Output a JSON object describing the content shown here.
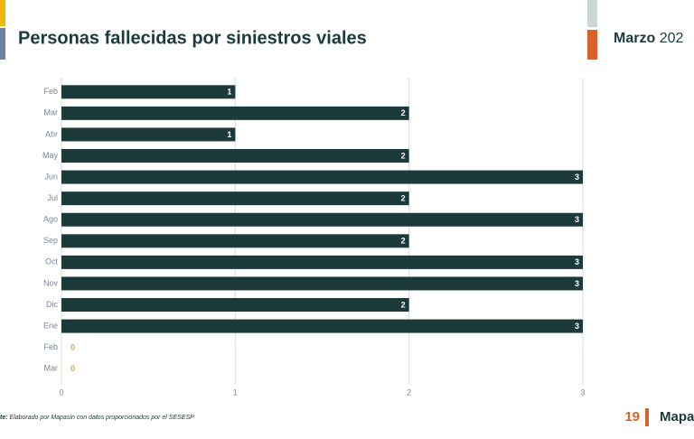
{
  "chart_data": {
    "type": "hbar",
    "title": "Personas fallecidas por siniestros viales",
    "categories": [
      "Feb",
      "Mar",
      "Abr",
      "May",
      "Jun",
      "Jul",
      "Ago",
      "Sep",
      "Oct",
      "Nov",
      "Dic",
      "Ene",
      "Feb",
      "Mar"
    ],
    "values": [
      1,
      2,
      1,
      2,
      3,
      2,
      3,
      2,
      3,
      3,
      2,
      3,
      0,
      0
    ],
    "color": "#1d3a3a",
    "zero_label_color": "#e8a33a",
    "xlim": [
      0,
      3
    ],
    "xticks": [
      0,
      1,
      2,
      3
    ],
    "grid": true
  },
  "header": {
    "month": "Marzo",
    "year": "202"
  },
  "footer": {
    "source_prefix": "te:",
    "source": "Elaborado por Mapasin con datos proporcionados por el SESESP",
    "page": "19",
    "brand": "Mapa"
  }
}
